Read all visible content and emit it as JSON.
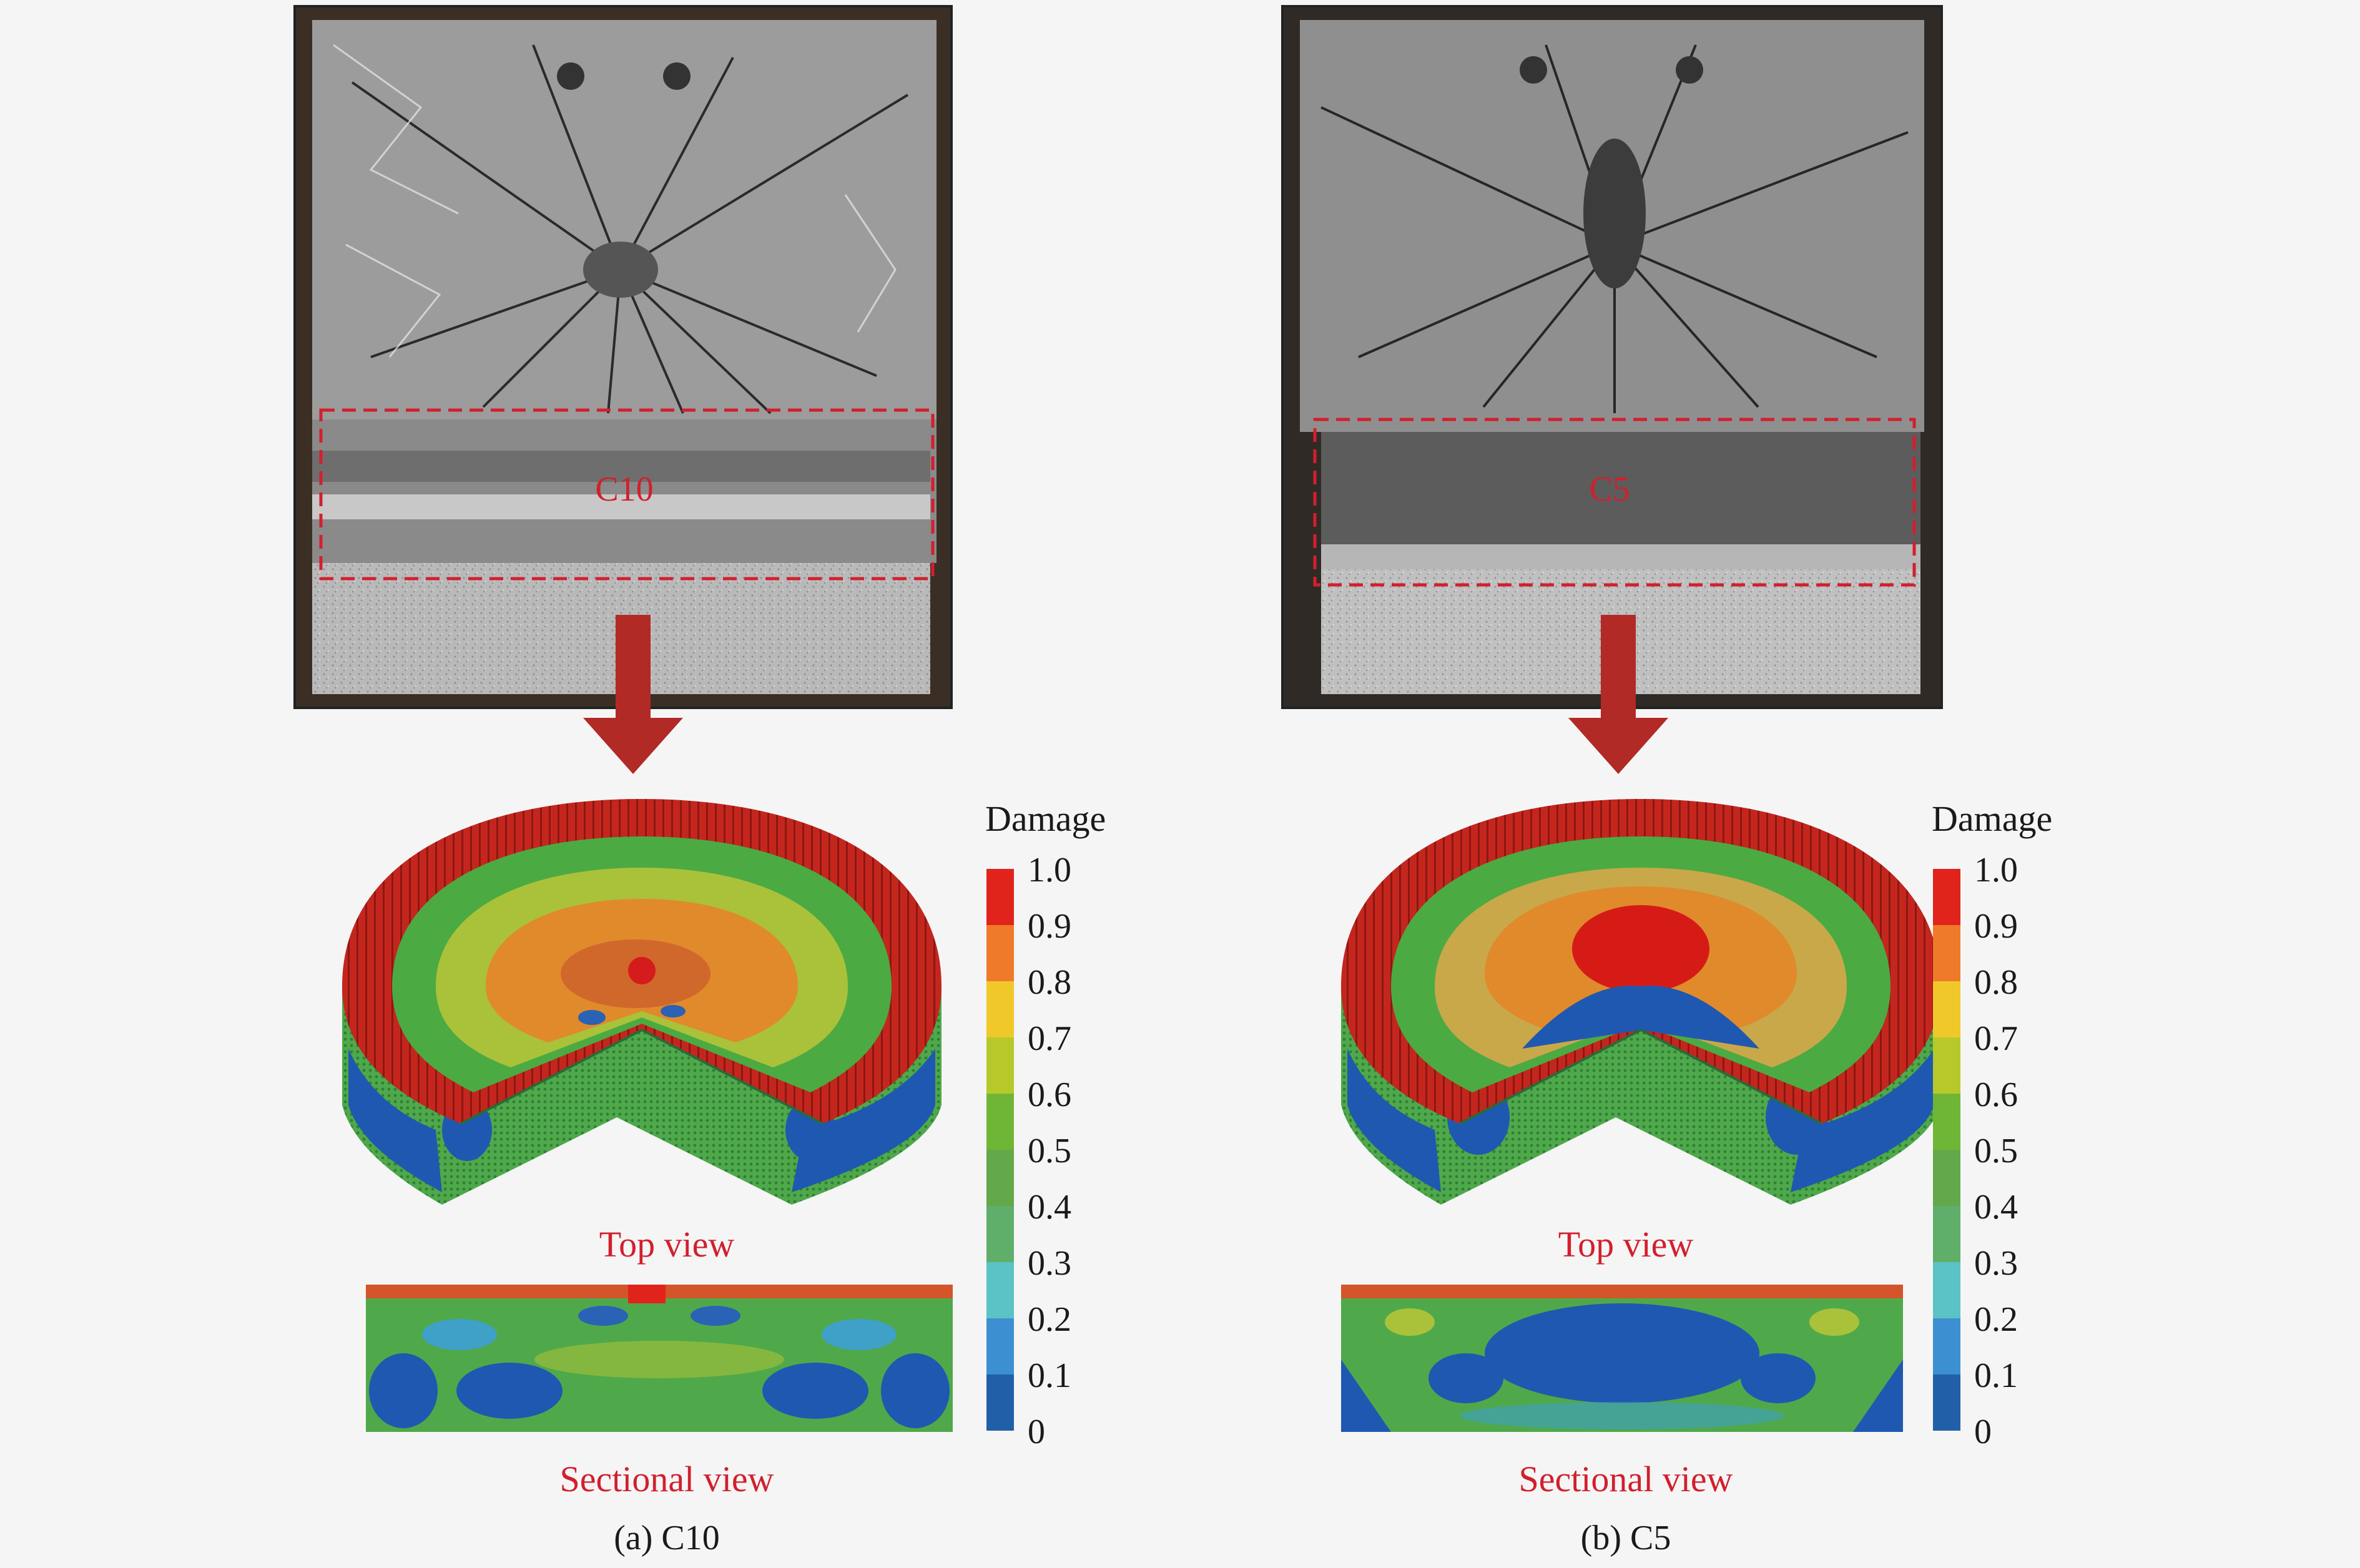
{
  "panels": [
    {
      "id": "a",
      "photo_label": "C10",
      "top_view_label": "Top view",
      "sectional_view_label": "Sectional view",
      "caption": "(a) C10"
    },
    {
      "id": "b",
      "photo_label": "C5",
      "top_view_label": "Top view",
      "sectional_view_label": "Sectional view",
      "caption": "(b) C5"
    }
  ],
  "colorbar": {
    "title": "Damage",
    "ticks": [
      "1.0",
      "0.9",
      "0.8",
      "0.7",
      "0.6",
      "0.5",
      "0.4",
      "0.3",
      "0.2",
      "0.1",
      "0"
    ],
    "colors": [
      "#e0241b",
      "#ef7a2a",
      "#f0c82a",
      "#b7c92a",
      "#6fb636",
      "#63a84a",
      "#5fae6a",
      "#5bc2c6",
      "#3c8fd0",
      "#2160a8"
    ]
  },
  "colors": {
    "label_red": "#d21f2d",
    "arrow": "#b12a26"
  }
}
